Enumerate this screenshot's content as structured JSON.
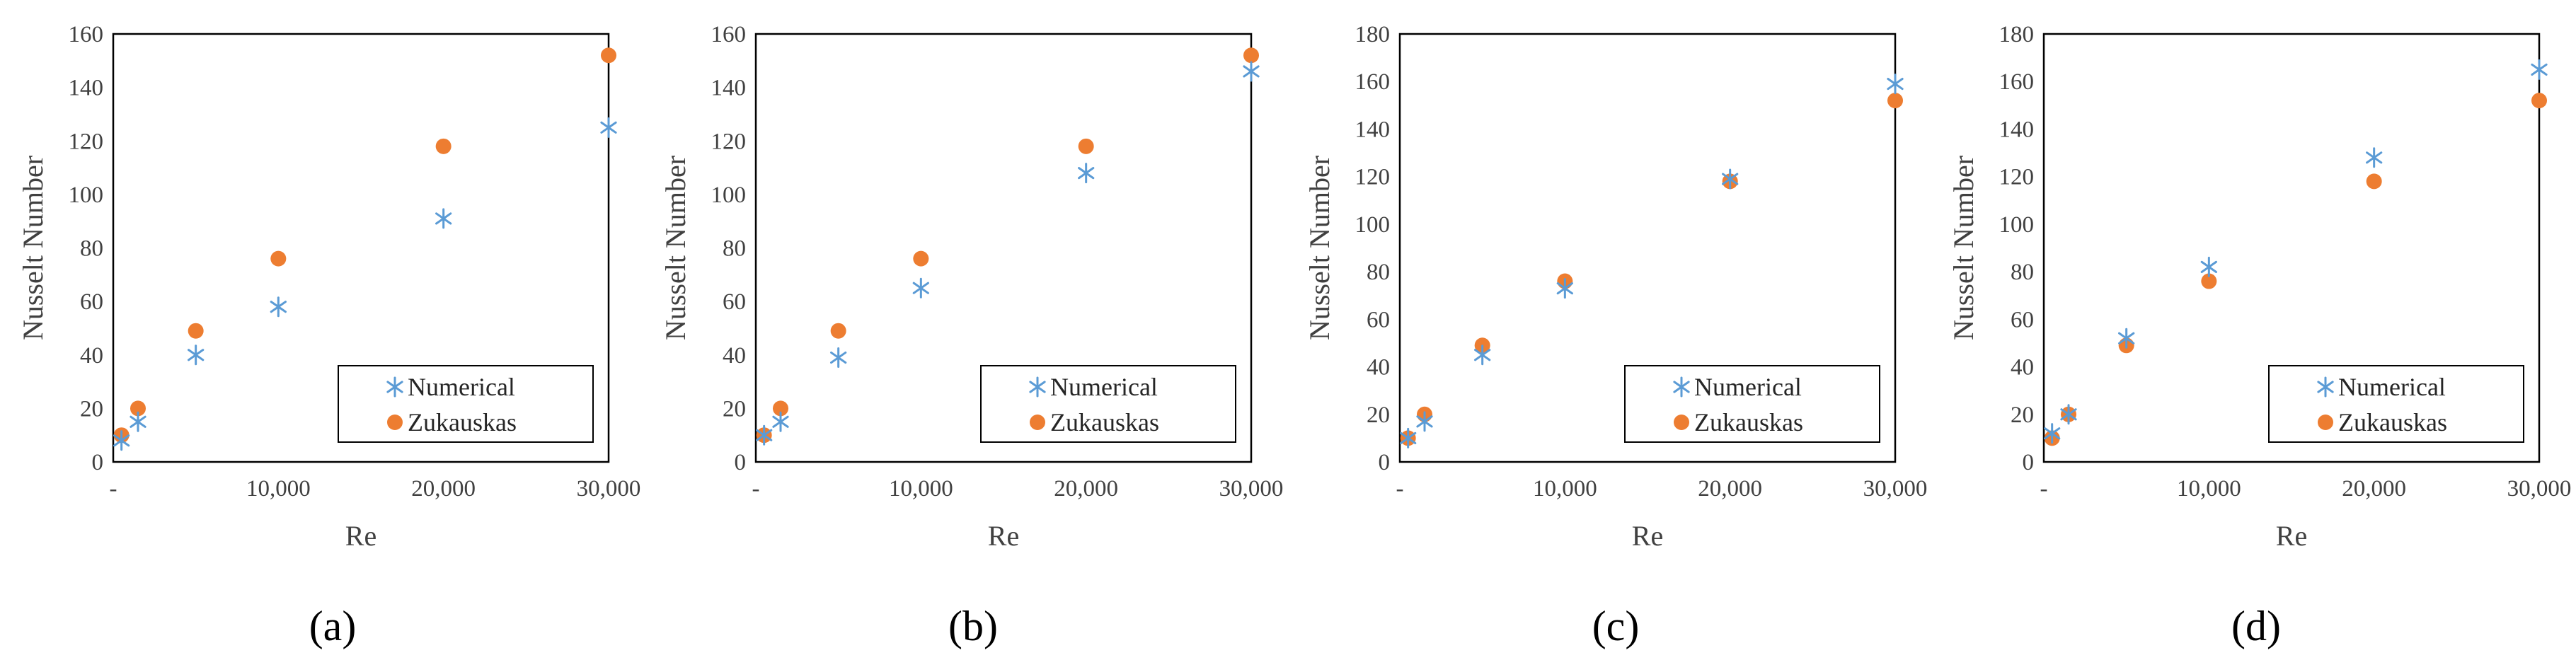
{
  "colors": {
    "numerical": "#5b9bd5",
    "zukauskas": "#ed7d31",
    "axis": "#000000",
    "text": "#404040"
  },
  "chart_data": [
    {
      "type": "scatter",
      "panel_label": "(a)",
      "xlabel": "Re",
      "ylabel": "Nusselt Number",
      "xlim": [
        0,
        30000
      ],
      "ylim": [
        0,
        160
      ],
      "x_ticks": [
        0,
        10000,
        20000,
        30000
      ],
      "x_tick_labels": [
        "-",
        "10,000",
        "20,000",
        "30,000"
      ],
      "y_ticks": [
        0,
        20,
        40,
        60,
        80,
        100,
        120,
        140,
        160
      ],
      "y_tick_labels": [
        "0",
        "20",
        "40",
        "60",
        "80",
        "100",
        "120",
        "140",
        "160"
      ],
      "legend_position": "bottom-right",
      "series": [
        {
          "name": "Numerical",
          "marker": "asterisk",
          "x": [
            500,
            1500,
            5000,
            10000,
            20000,
            30000
          ],
          "y": [
            8,
            15,
            40,
            58,
            91,
            125
          ]
        },
        {
          "name": "Zukauskas",
          "marker": "circle",
          "x": [
            500,
            1500,
            5000,
            10000,
            20000,
            30000
          ],
          "y": [
            10,
            20,
            49,
            76,
            118,
            152
          ]
        }
      ]
    },
    {
      "type": "scatter",
      "panel_label": "(b)",
      "xlabel": "Re",
      "ylabel": "Nusselt Number",
      "xlim": [
        0,
        30000
      ],
      "ylim": [
        0,
        160
      ],
      "x_ticks": [
        0,
        10000,
        20000,
        30000
      ],
      "x_tick_labels": [
        "-",
        "10,000",
        "20,000",
        "30,000"
      ],
      "y_ticks": [
        0,
        20,
        40,
        60,
        80,
        100,
        120,
        140,
        160
      ],
      "y_tick_labels": [
        "0",
        "20",
        "40",
        "60",
        "80",
        "100",
        "120",
        "140",
        "160"
      ],
      "legend_position": "bottom-right",
      "series": [
        {
          "name": "Numerical",
          "marker": "asterisk",
          "x": [
            500,
            1500,
            5000,
            10000,
            20000,
            30000
          ],
          "y": [
            10,
            15,
            39,
            65,
            108,
            146
          ]
        },
        {
          "name": "Zukauskas",
          "marker": "circle",
          "x": [
            500,
            1500,
            5000,
            10000,
            20000,
            30000
          ],
          "y": [
            10,
            20,
            49,
            76,
            118,
            152
          ]
        }
      ]
    },
    {
      "type": "scatter",
      "panel_label": "(c)",
      "xlabel": "Re",
      "ylabel": "Nusselt Number",
      "xlim": [
        0,
        30000
      ],
      "ylim": [
        0,
        180
      ],
      "x_ticks": [
        0,
        10000,
        20000,
        30000
      ],
      "x_tick_labels": [
        "-",
        "10,000",
        "20,000",
        "30,000"
      ],
      "y_ticks": [
        0,
        20,
        40,
        60,
        80,
        100,
        120,
        140,
        160,
        180
      ],
      "y_tick_labels": [
        "0",
        "20",
        "40",
        "60",
        "80",
        "100",
        "120",
        "140",
        "160",
        "180"
      ],
      "legend_position": "bottom-right",
      "series": [
        {
          "name": "Numerical",
          "marker": "asterisk",
          "x": [
            500,
            1500,
            5000,
            10000,
            20000,
            30000
          ],
          "y": [
            10,
            17,
            45,
            73,
            119,
            159
          ]
        },
        {
          "name": "Zukauskas",
          "marker": "circle",
          "x": [
            500,
            1500,
            5000,
            10000,
            20000,
            30000
          ],
          "y": [
            10,
            20,
            49,
            76,
            118,
            152
          ]
        }
      ]
    },
    {
      "type": "scatter",
      "panel_label": "(d)",
      "xlabel": "Re",
      "ylabel": "Nusselt Number",
      "xlim": [
        0,
        30000
      ],
      "ylim": [
        0,
        180
      ],
      "x_ticks": [
        0,
        10000,
        20000,
        30000
      ],
      "x_tick_labels": [
        "-",
        "10,000",
        "20,000",
        "30,000"
      ],
      "y_ticks": [
        0,
        20,
        40,
        60,
        80,
        100,
        120,
        140,
        160,
        180
      ],
      "y_tick_labels": [
        "0",
        "20",
        "40",
        "60",
        "80",
        "100",
        "120",
        "140",
        "160",
        "180"
      ],
      "legend_position": "bottom-right",
      "series": [
        {
          "name": "Numerical",
          "marker": "asterisk",
          "x": [
            500,
            1500,
            5000,
            10000,
            20000,
            30000
          ],
          "y": [
            12,
            20,
            52,
            82,
            128,
            165
          ]
        },
        {
          "name": "Zukauskas",
          "marker": "circle",
          "x": [
            500,
            1500,
            5000,
            10000,
            20000,
            30000
          ],
          "y": [
            10,
            20,
            49,
            76,
            118,
            152
          ]
        }
      ]
    }
  ]
}
